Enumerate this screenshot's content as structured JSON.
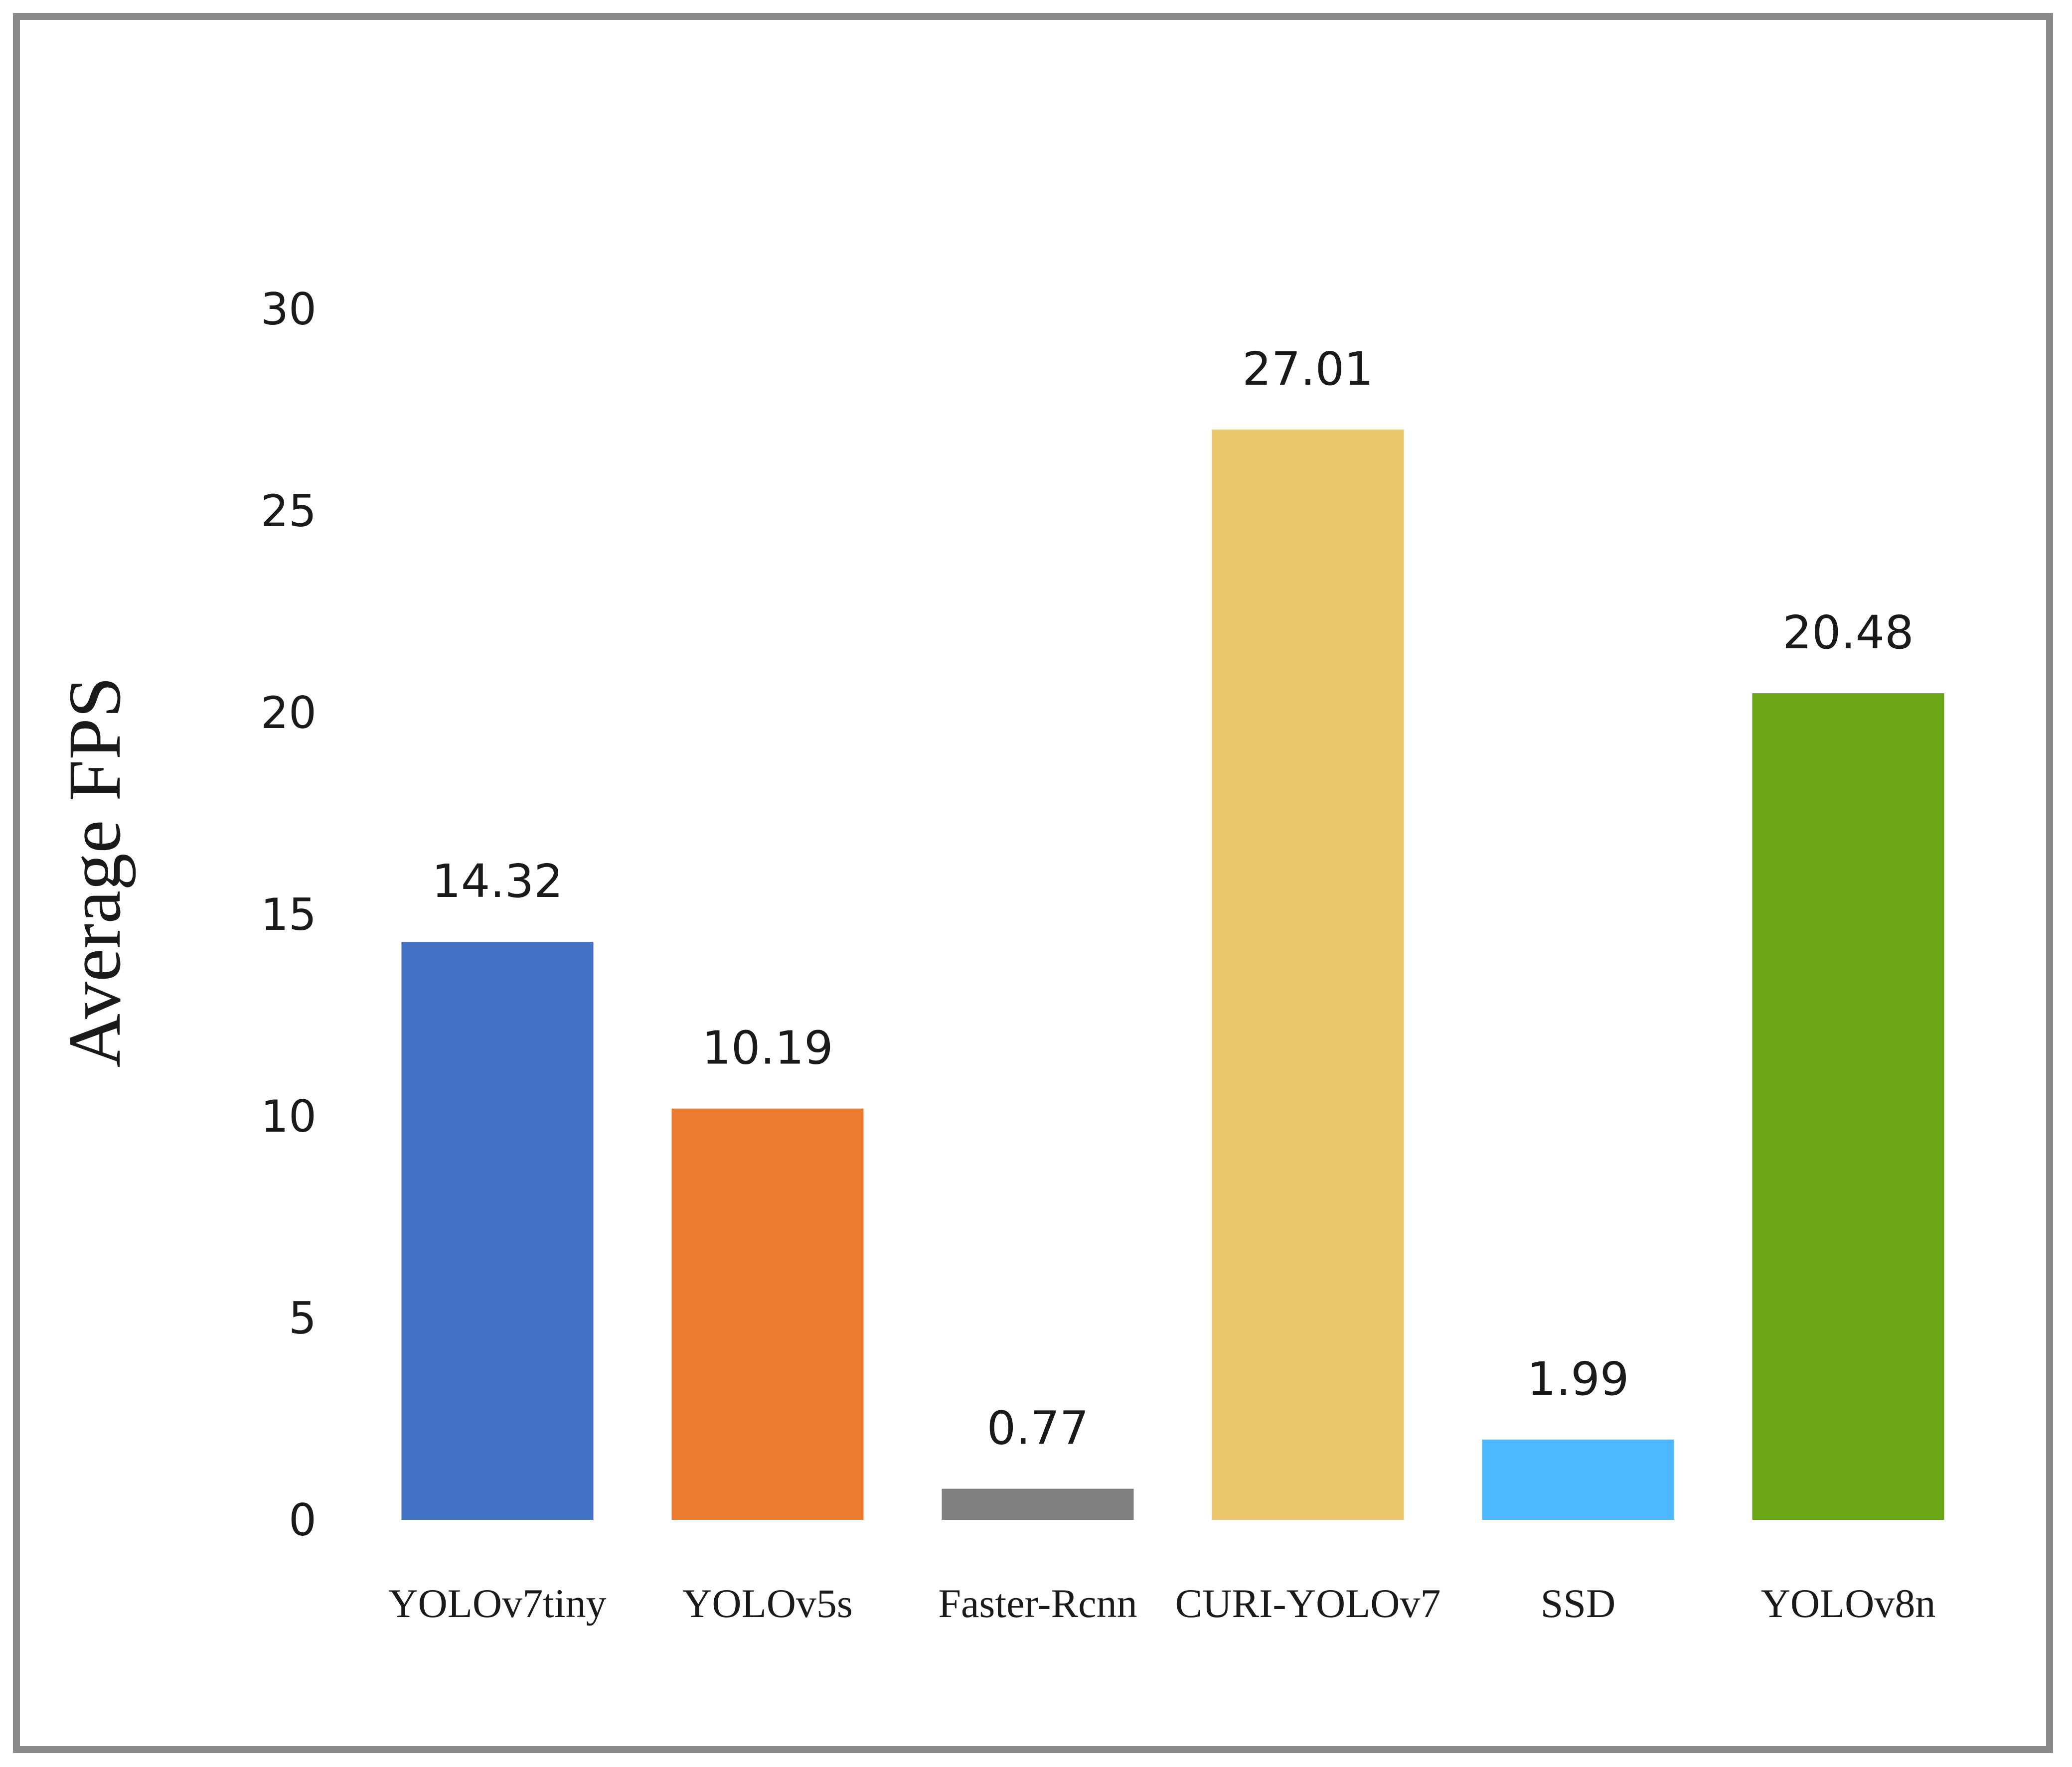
{
  "chart_data": {
    "type": "bar",
    "title": "",
    "xlabel": "",
    "ylabel": "Average  FPS",
    "ylim": [
      0,
      30
    ],
    "yticks": [
      0,
      5,
      10,
      15,
      20,
      25,
      30
    ],
    "grid": false,
    "categories": [
      "YOLOv7tiny",
      "YOLOv5s",
      "Faster-Rcnn",
      "CURI-YOLOv7",
      "SSD",
      "YOLOv8n"
    ],
    "values": [
      14.32,
      10.19,
      0.77,
      27.01,
      1.99,
      20.48
    ],
    "value_labels": [
      "14.32",
      "10.19",
      "0.77",
      "27.01",
      "1.99",
      "20.48"
    ],
    "colors": [
      "#4472C4",
      "#ED7D31",
      "#7F7F7F",
      "#EBC66A",
      "#4DB8FF",
      "#6AA616"
    ]
  }
}
